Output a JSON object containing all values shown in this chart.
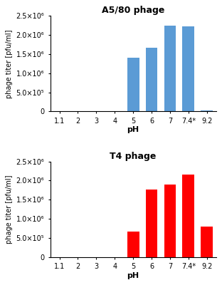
{
  "top": {
    "title": "A5/80 phage",
    "bar_color": "#5b9bd5",
    "categories": [
      "1.1",
      "2",
      "3",
      "4",
      "5",
      "6",
      "7",
      "7.4*",
      "9.2"
    ],
    "values": [
      0,
      0,
      0,
      0,
      1400000,
      1670000,
      2250000,
      2220000,
      30000
    ],
    "ylim": [
      0,
      2500000
    ],
    "yticks": [
      0,
      500000,
      1000000,
      1500000,
      2000000,
      2500000
    ],
    "ytick_labels": [
      "0",
      "5.0×10⁵",
      "1.0×10⁶",
      "1.5×10⁶",
      "2.0×10⁶",
      "2.5×10⁶"
    ],
    "ylabel": "phage titer [pfu/ml]",
    "xlabel": "pH"
  },
  "bottom": {
    "title": "T4 phage",
    "bar_color": "#ff0000",
    "categories": [
      "1.1",
      "2",
      "3",
      "4",
      "5",
      "6",
      "7",
      "7.4*",
      "9.2"
    ],
    "values": [
      0,
      0,
      0,
      0,
      670000,
      1770000,
      1900000,
      2160000,
      800000
    ],
    "ylim": [
      0,
      2500000
    ],
    "yticks": [
      0,
      500000,
      1000000,
      1500000,
      2000000,
      2500000
    ],
    "ytick_labels": [
      "0",
      "5.0×10⁵",
      "1.0×10⁶",
      "1.5×10⁶",
      "2.0×10⁶",
      "2.5×10⁶"
    ],
    "ylabel": "phage titer [pfu/ml]",
    "xlabel": "pH"
  }
}
